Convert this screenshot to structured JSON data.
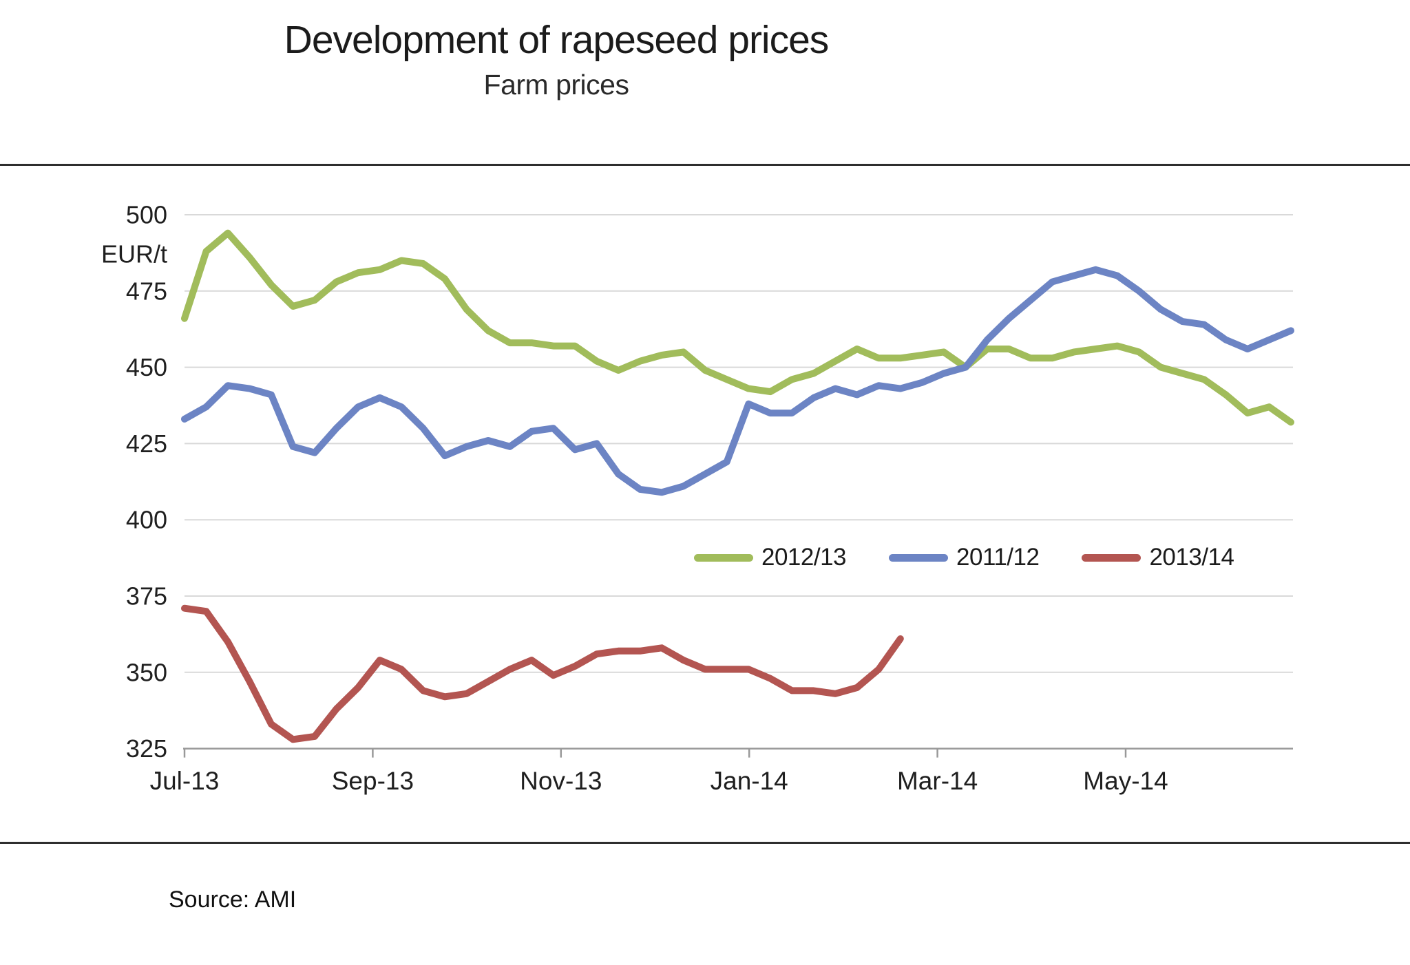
{
  "header": {
    "title": "Development of rapeseed prices",
    "subtitle": "Farm prices"
  },
  "footer": {
    "source": "Source: AMI"
  },
  "colors": {
    "series_green": "#A1BC5B",
    "series_blue": "#6C84C4",
    "series_red": "#B35551",
    "gridline": "#D9D9D9",
    "axis": "#999999",
    "rule": "#2e2e2e",
    "tick_text": "#1f1f1f"
  },
  "chart_data": {
    "type": "line",
    "title": "Development of rapeseed prices",
    "subtitle": "Farm prices",
    "ylabel_unit": "EUR/t",
    "ylim": [
      325,
      500
    ],
    "y_ticks": [
      500,
      475,
      450,
      425,
      400,
      375,
      350,
      325
    ],
    "x_tick_labels": [
      "Jul-13",
      "Sep-13",
      "Nov-13",
      "Jan-14",
      "Mar-14",
      "May-14"
    ],
    "x_note": "weekly values from Jul-13 through Jun-14",
    "grid": "horizontal",
    "legend_position": "inside-middle-right",
    "legend": [
      "2012/13",
      "2011/12",
      "2013/14"
    ],
    "series": [
      {
        "name": "2012/13",
        "color": "#A1BC5B",
        "values": [
          466,
          488,
          494,
          486,
          477,
          470,
          472,
          478,
          481,
          482,
          485,
          484,
          479,
          469,
          462,
          458,
          458,
          457,
          457,
          452,
          449,
          452,
          454,
          455,
          449,
          446,
          443,
          442,
          446,
          448,
          452,
          456,
          453,
          453,
          454,
          455,
          450,
          456,
          456,
          453,
          453,
          455,
          456,
          457,
          455,
          450,
          448,
          446,
          441,
          435,
          437,
          432
        ]
      },
      {
        "name": "2011/12",
        "color": "#6C84C4",
        "values": [
          433,
          437,
          444,
          443,
          441,
          424,
          422,
          430,
          437,
          440,
          437,
          430,
          421,
          424,
          426,
          424,
          429,
          430,
          423,
          425,
          415,
          410,
          409,
          411,
          415,
          419,
          438,
          435,
          435,
          440,
          443,
          441,
          444,
          443,
          445,
          448,
          450,
          459,
          466,
          472,
          478,
          480,
          482,
          480,
          475,
          469,
          465,
          464,
          459,
          456,
          459,
          462
        ]
      },
      {
        "name": "2013/14",
        "color": "#B35551",
        "values": [
          371,
          370,
          360,
          347,
          333,
          328,
          329,
          338,
          345,
          354,
          351,
          344,
          342,
          343,
          347,
          351,
          354,
          349,
          352,
          356,
          357,
          357,
          358,
          354,
          351,
          351,
          351,
          348,
          344,
          344,
          343,
          345,
          351,
          361
        ]
      }
    ]
  }
}
